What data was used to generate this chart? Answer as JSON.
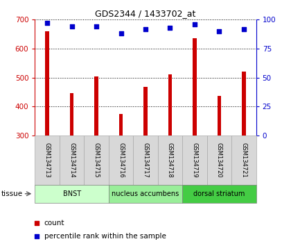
{
  "title": "GDS2344 / 1433702_at",
  "samples": [
    "GSM134713",
    "GSM134714",
    "GSM134715",
    "GSM134716",
    "GSM134717",
    "GSM134718",
    "GSM134719",
    "GSM134720",
    "GSM134721"
  ],
  "counts": [
    660,
    445,
    503,
    374,
    467,
    511,
    635,
    436,
    521
  ],
  "percentiles": [
    97,
    94,
    94,
    88,
    92,
    93,
    96,
    90,
    92
  ],
  "ylim_left": [
    300,
    700
  ],
  "ylim_right": [
    0,
    100
  ],
  "yticks_left": [
    300,
    400,
    500,
    600,
    700
  ],
  "yticks_right": [
    0,
    25,
    50,
    75,
    100
  ],
  "bar_color": "#cc0000",
  "scatter_color": "#0000cc",
  "tissue_groups": [
    {
      "label": "BNST",
      "start": 0,
      "end": 3,
      "color": "#ccffcc"
    },
    {
      "label": "nucleus accumbens",
      "start": 3,
      "end": 6,
      "color": "#99ee99"
    },
    {
      "label": "dorsal striatum",
      "start": 6,
      "end": 9,
      "color": "#44cc44"
    }
  ],
  "tissue_label": "tissue",
  "legend_count": "count",
  "legend_percentile": "percentile rank within the sample",
  "bar_width": 0.15,
  "ylabel_left_color": "#cc0000",
  "ylabel_right_color": "#0000cc",
  "grid_linestyle": "dotted",
  "sample_box_color": "#d8d8d8",
  "sample_box_edge": "#aaaaaa",
  "left_axis_color": "#cc0000",
  "right_axis_color": "#0000cc"
}
